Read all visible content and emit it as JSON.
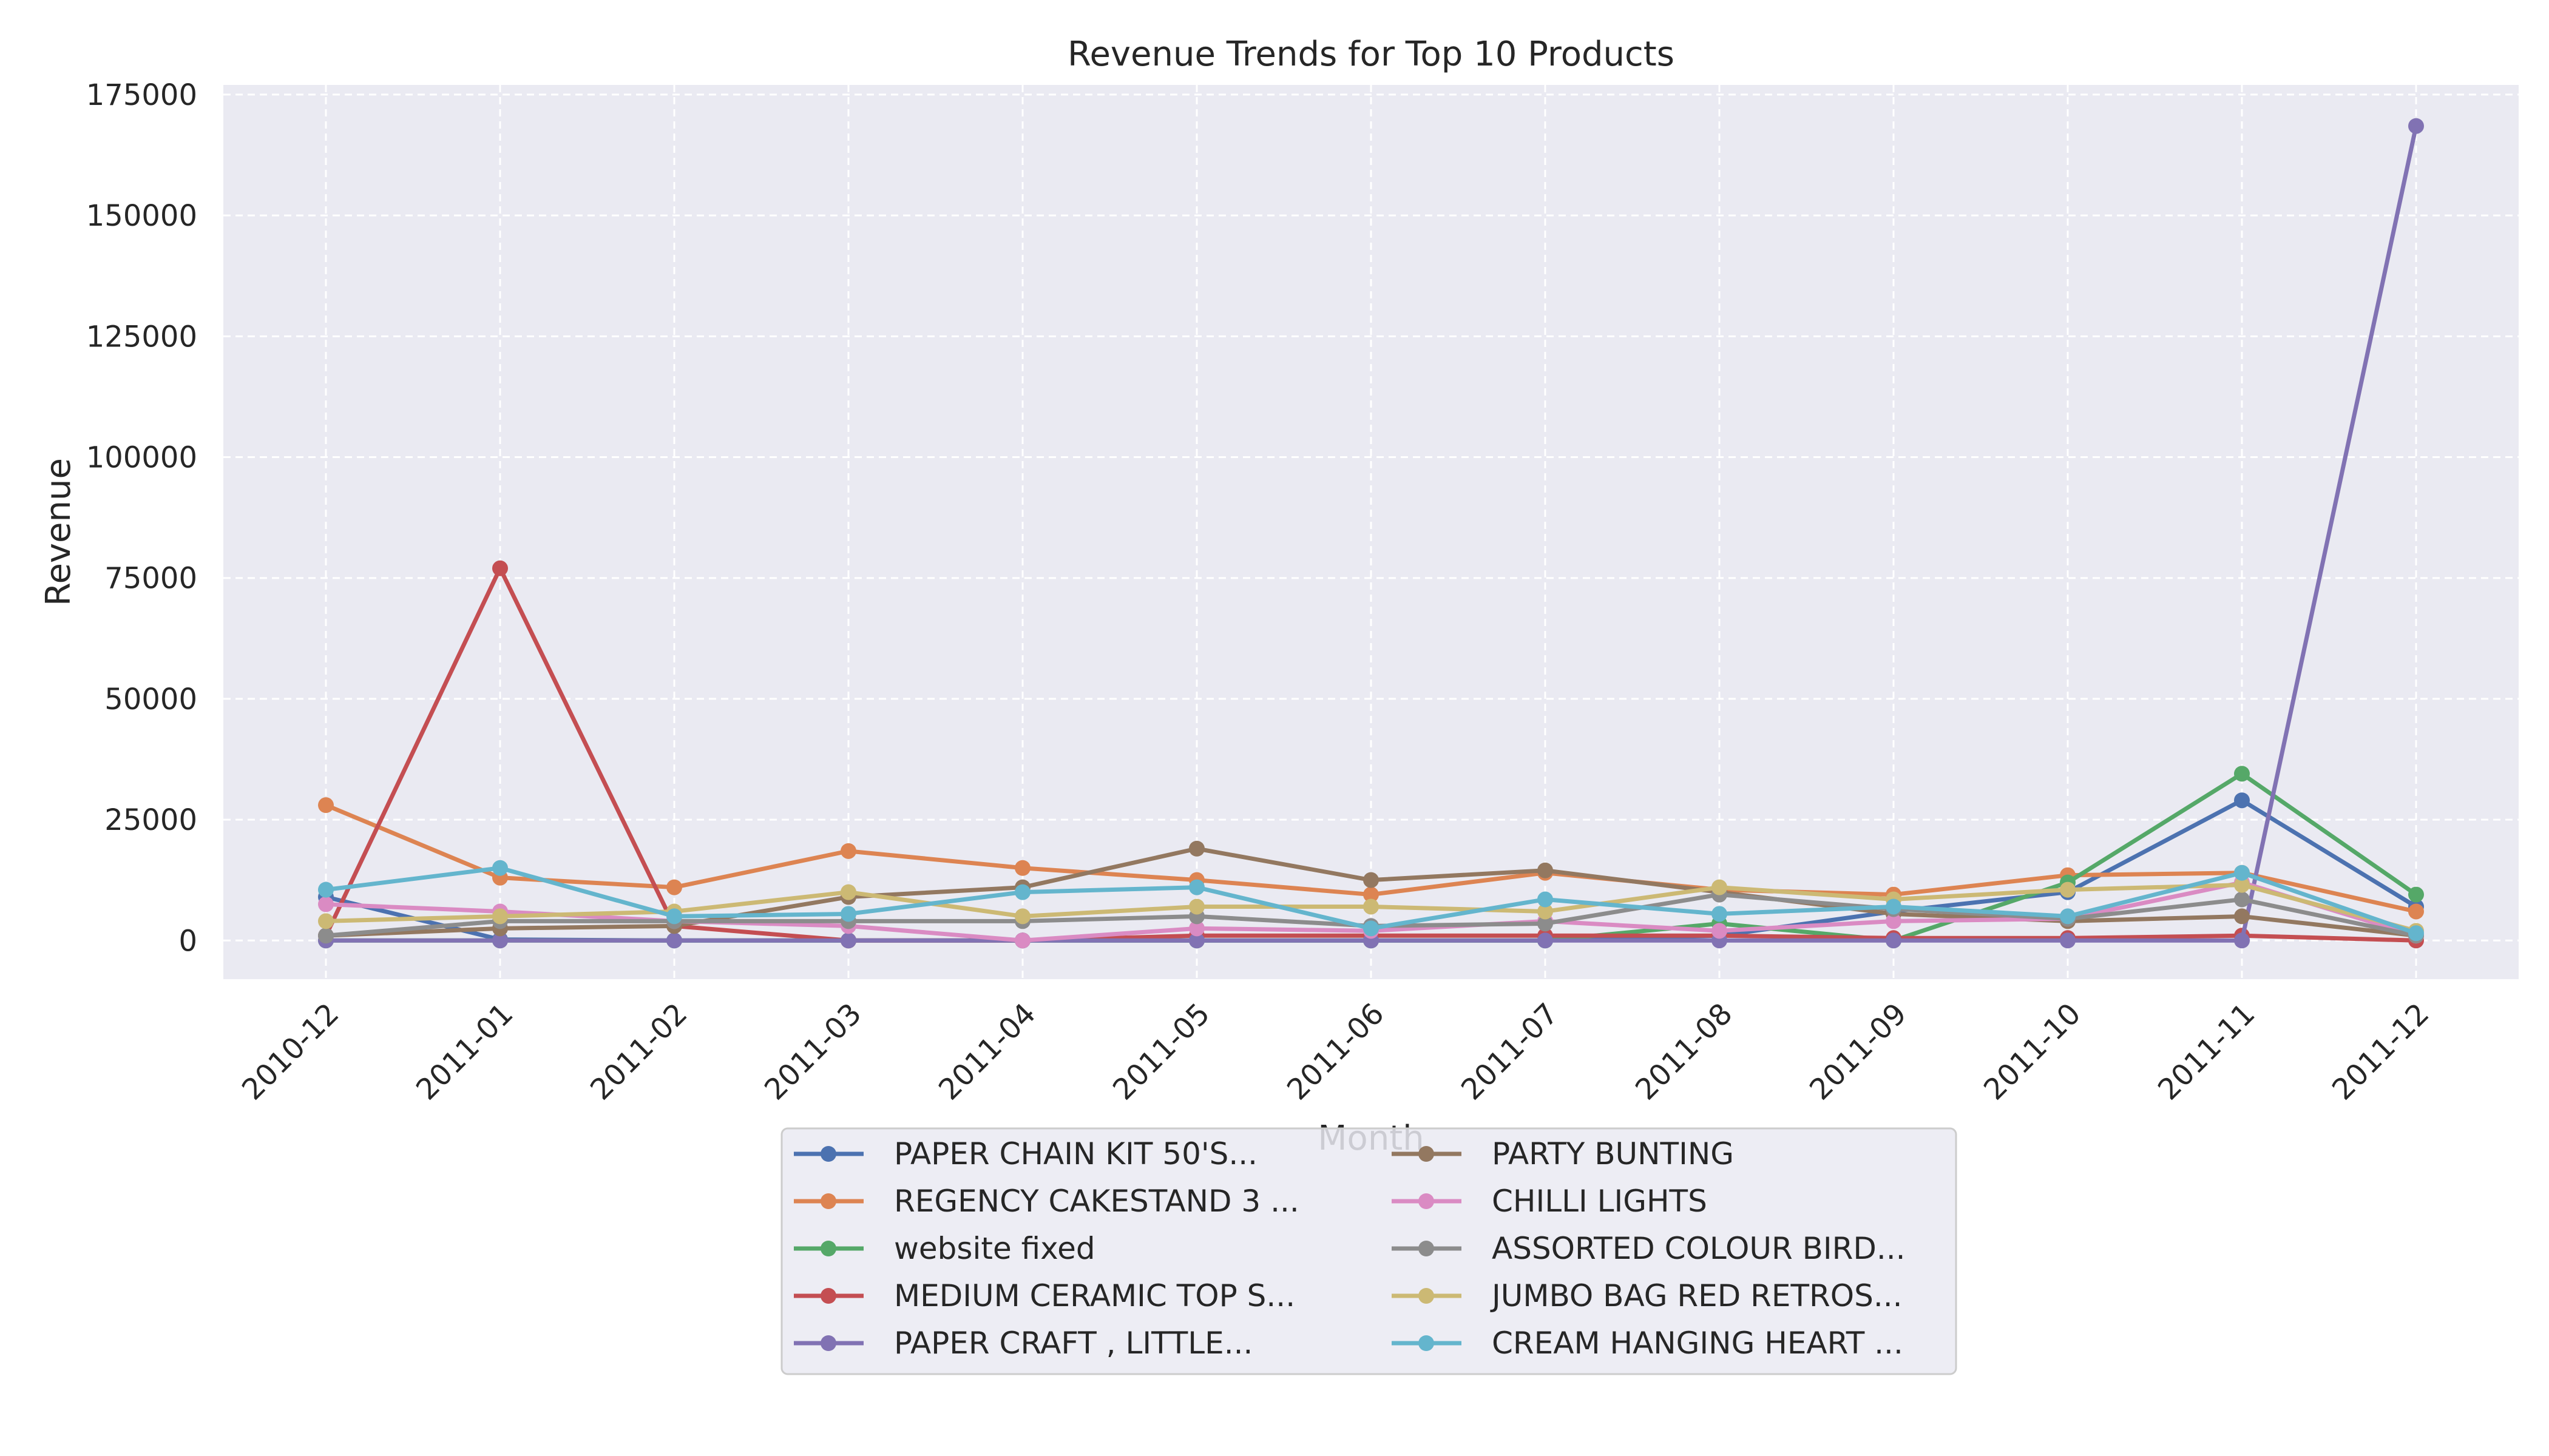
{
  "chart_data": {
    "type": "line",
    "title": "Revenue Trends for Top 10 Products",
    "xlabel": "Month",
    "ylabel": "Revenue",
    "ylim": [
      -8000,
      177000
    ],
    "yticks": [
      0,
      25000,
      50000,
      75000,
      100000,
      125000,
      150000,
      175000
    ],
    "grid": true,
    "legend_position": "bottom-center",
    "categories": [
      "2010-12",
      "2011-01",
      "2011-02",
      "2011-03",
      "2011-04",
      "2011-05",
      "2011-06",
      "2011-07",
      "2011-08",
      "2011-09",
      "2011-10",
      "2011-11",
      "2011-12"
    ],
    "series": [
      {
        "name": "PAPER CHAIN KIT 50'S...",
        "color": "#4c72b0",
        "values": [
          9000,
          200,
          0,
          0,
          0,
          0,
          0,
          0,
          1000,
          6000,
          10000,
          29000,
          7000
        ]
      },
      {
        "name": "REGENCY CAKESTAND 3 ...",
        "color": "#dd8452",
        "values": [
          28000,
          13000,
          11000,
          18500,
          15000,
          12500,
          9500,
          14000,
          10500,
          9500,
          13500,
          14000,
          6000
        ]
      },
      {
        "name": "website fixed",
        "color": "#55a868",
        "values": [
          0,
          0,
          0,
          0,
          0,
          0,
          0,
          0,
          3500,
          0,
          12000,
          34500,
          9500
        ]
      },
      {
        "name": "MEDIUM CERAMIC TOP S...",
        "color": "#c44e52",
        "values": [
          1000,
          77000,
          3000,
          0,
          0,
          1000,
          1000,
          1000,
          1000,
          500,
          500,
          1000,
          0
        ]
      },
      {
        "name": "PAPER CRAFT , LITTLE...",
        "color": "#8172b3",
        "values": [
          0,
          0,
          0,
          0,
          0,
          0,
          0,
          0,
          0,
          0,
          0,
          0,
          168500
        ]
      },
      {
        "name": "PARTY BUNTING",
        "color": "#937860",
        "values": [
          1000,
          2500,
          3000,
          9000,
          11000,
          19000,
          12500,
          14500,
          10000,
          5500,
          4000,
          5000,
          1000
        ]
      },
      {
        "name": "CHILLI LIGHTS",
        "color": "#da8bc3",
        "values": [
          7500,
          6000,
          4000,
          3000,
          0,
          2500,
          2000,
          4000,
          2000,
          4000,
          4500,
          12000,
          1000
        ]
      },
      {
        "name": "ASSORTED COLOUR BIRD...",
        "color": "#8c8c8c",
        "values": [
          1000,
          4000,
          4000,
          4000,
          4000,
          5000,
          3000,
          3500,
          9500,
          6500,
          4500,
          8500,
          1000
        ]
      },
      {
        "name": "JUMBO BAG RED RETROS...",
        "color": "#ccb974",
        "values": [
          4000,
          5000,
          6000,
          10000,
          5000,
          7000,
          7000,
          6000,
          11000,
          8500,
          10500,
          11500,
          2000
        ]
      },
      {
        "name": "CREAM HANGING HEART ...",
        "color": "#64b5cd",
        "values": [
          10500,
          15000,
          5000,
          5500,
          10000,
          11000,
          2500,
          8500,
          5500,
          7000,
          5000,
          14000,
          1500
        ]
      }
    ]
  }
}
